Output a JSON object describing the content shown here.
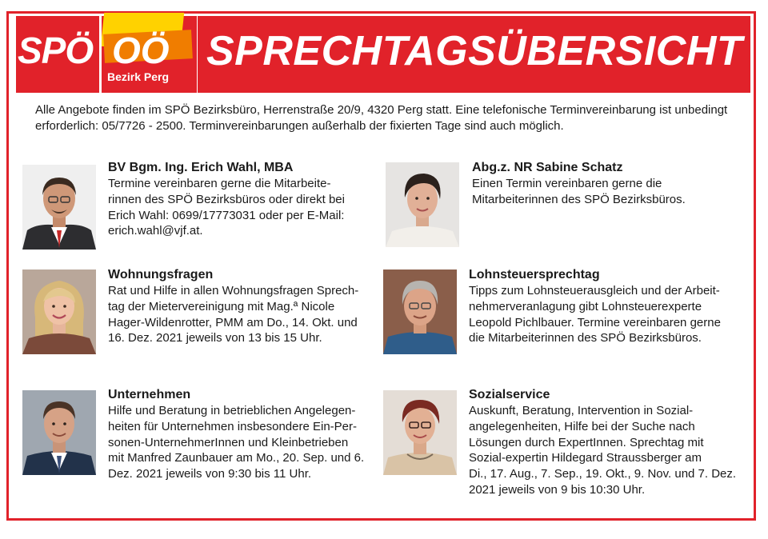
{
  "header": {
    "logo_text_spo": "SPÖ",
    "logo_text_oo": "OÖ",
    "logo_subtitle": "Bezirk Perg",
    "title": "SPRECHTAGSÜBERSICHT",
    "accent_color": "#e1222a",
    "logo_yellow": "#ffd200",
    "logo_orange": "#f07d00"
  },
  "intro": "Alle Angebote finden im SPÖ Bezirksbüro, Herrenstraße 20/9, 4320 Perg statt. Eine telefonische Terminvereinbarung ist unbedingt erforderlich: 05/7726 - 2500. Terminvereinbarungen außerhalb der fixierten Tage sind auch möglich.",
  "cards": [
    {
      "title": "BV Bgm. Ing. Erich Wahl, MBA",
      "lines": [
        "Termine vereinbaren gerne die Mitarbeite-",
        "rinnen des SPÖ Bezirksbüros oder direkt bei",
        "Erich Wahl: 0699/17773031 oder per E-Mail:",
        "erich.wahl@vjf.at."
      ]
    },
    {
      "title": "Abg.z. NR Sabine Schatz",
      "lines": [
        "Einen Termin vereinbaren gerne die",
        "Mitarbeiterinnen des SPÖ Bezirksbüros."
      ]
    },
    {
      "title": "Wohnungsfragen",
      "lines": [
        "Rat und Hilfe in allen Wohnungsfragen Sprech-",
        "tag der Mietervereinigung mit Mag.ª Nicole",
        "Hager-Wildenrotter, PMM am Do., 14. Okt. und",
        "16. Dez. 2021 jeweils von 13 bis 15 Uhr."
      ]
    },
    {
      "title": "Lohnsteuersprechtag",
      "lines": [
        "Tipps zum Lohnsteuerausgleich und der Arbeit-",
        "nehmerveranlagung gibt Lohnsteuerexperte",
        "Leopold Pichlbauer. Termine vereinbaren gerne",
        "die Mitarbeiterinnen des SPÖ Bezirksbüros."
      ]
    },
    {
      "title": "Unternehmen",
      "lines": [
        "Hilfe und Beratung in betrieblichen Angelegen-",
        "heiten für Unternehmen insbesondere Ein-Per-",
        "sonen-UnternehmerInnen und Kleinbetrieben",
        "mit Manfred Zaunbauer am Mo., 20. Sep. und 6.",
        "Dez. 2021 jeweils von 9:30 bis 11 Uhr."
      ]
    },
    {
      "title": "Sozialservice",
      "lines": [
        "Auskunft, Beratung, Intervention in Sozial-",
        "angelegenheiten, Hilfe bei der Suche nach",
        "Lösungen durch ExpertInnen. Sprechtag mit",
        "Sozial-expertin Hildegard Straussberger am",
        "Di., 17. Aug., 7. Sep., 19. Okt., 9. Nov. und 7. Dez.",
        "2021 jeweils von 9 bis 10:30 Uhr."
      ]
    }
  ]
}
